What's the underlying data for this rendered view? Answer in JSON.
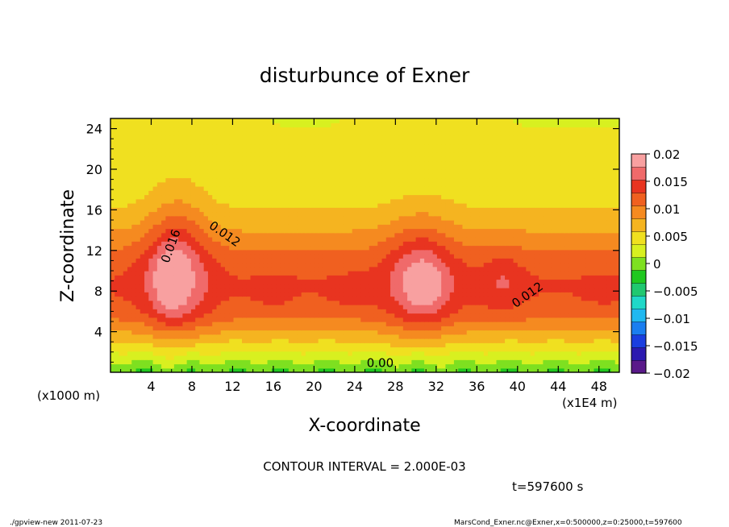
{
  "chart_data": {
    "type": "heatmap",
    "title": "disturbunce of Exner",
    "xlabel": "X-coordinate",
    "ylabel": "Z-coordinate",
    "x_unit_left": "(x1000 m)",
    "x_unit_right": "(x1E4 m)",
    "xlim": [
      0,
      50
    ],
    "ylim": [
      0,
      25
    ],
    "x_ticks": [
      4,
      8,
      12,
      16,
      20,
      24,
      28,
      32,
      36,
      40,
      44,
      48
    ],
    "x_tick_labels": [
      "4",
      "8",
      "12",
      "16",
      "20",
      "24",
      "28",
      "32",
      "36",
      "40",
      "44",
      "48"
    ],
    "y_ticks": [
      4,
      8,
      12,
      16,
      20,
      24
    ],
    "y_tick_labels": [
      "4",
      "8",
      "12",
      "16",
      "20",
      "24"
    ],
    "contour_interval": "CONTOUR INTERVAL = 2.000E-03",
    "time_label": "t=597600 s",
    "contour_labels": [
      {
        "text": "0.016",
        "x": 6.3,
        "z": 12.3,
        "angle": -70
      },
      {
        "text": "0.012",
        "x": 11.0,
        "z": 13.3,
        "angle": 35
      },
      {
        "text": "0.012",
        "x": 41.2,
        "z": 7.3,
        "angle": -35
      },
      {
        "text": "0.00",
        "x": 26.5,
        "z": 0.5,
        "angle": 0
      }
    ],
    "colorbar": {
      "min": -0.02,
      "max": 0.02,
      "tick_values": [
        0.02,
        0.015,
        0.01,
        0.005,
        0,
        -0.005,
        -0.01,
        -0.015,
        -0.02
      ],
      "tick_labels": [
        "0.02",
        "0.015",
        "0.01",
        "0.005",
        "0",
        "−0.005",
        "−0.01",
        "−0.015",
        "−0.02"
      ],
      "colors": [
        "#5a1a8a",
        "#2b1ab0",
        "#1a3ee0",
        "#1a7ef0",
        "#20b8f0",
        "#20d8c8",
        "#20c870",
        "#20c820",
        "#7ee020",
        "#d8f020",
        "#f0e020",
        "#f5b420",
        "#f58a20",
        "#f06020",
        "#e83420",
        "#f06a6a",
        "#f8a0a0"
      ]
    }
  },
  "footer": {
    "left": "./gpview-new   2011-07-23",
    "right": "MarsCond_Exner.nc@Exner,x=0:500000,z=0:25000,t=597600"
  }
}
